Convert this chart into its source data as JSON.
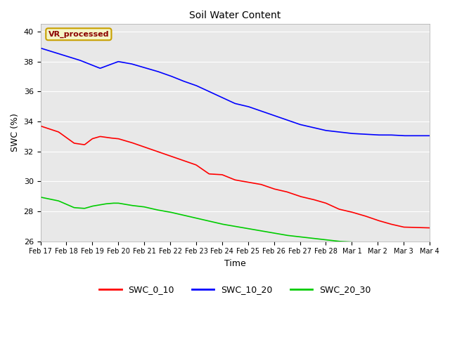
{
  "title": "Soil Water Content",
  "xlabel": "Time",
  "ylabel": "SWC (%)",
  "ylim": [
    26,
    40.5
  ],
  "background_color": "#e8e8e8",
  "annotation_text": "VR_processed",
  "annotation_bg": "#f5f5c8",
  "annotation_border": "#c8a000",
  "annotation_text_color": "#8b0000",
  "legend_labels": [
    "SWC_0_10",
    "SWC_10_20",
    "SWC_20_30"
  ],
  "legend_colors": [
    "#ff0000",
    "#0000ff",
    "#00cc00"
  ],
  "xtick_labels": [
    "Feb 17",
    "Feb 18",
    "Feb 19",
    "Feb 20",
    "Feb 21",
    "Feb 22",
    "Feb 23",
    "Feb 24",
    "Feb 25",
    "Feb 26",
    "Feb 27",
    "Feb 28",
    "Mar 1",
    "Mar 2",
    "Mar 3",
    "Mar 4"
  ]
}
